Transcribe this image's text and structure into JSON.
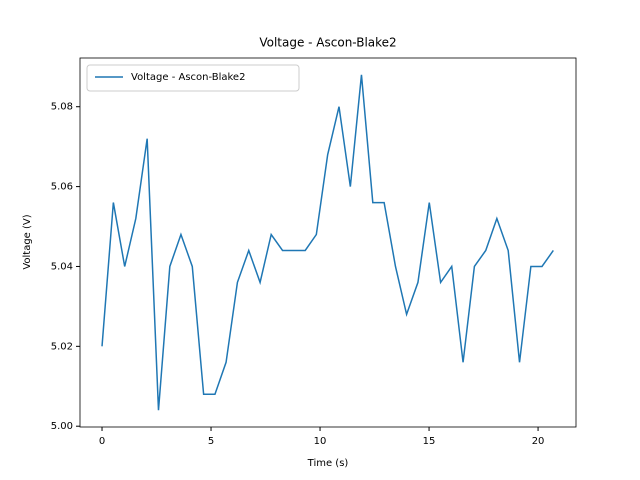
{
  "chart_data": {
    "type": "line",
    "title": "Voltage - Ascon-Blake2",
    "xlabel": "Time (s)",
    "ylabel": "Voltage (V)",
    "x": [
      0,
      0.52,
      1.04,
      1.55,
      2.07,
      2.59,
      3.11,
      3.62,
      4.14,
      4.66,
      5.18,
      5.69,
      6.21,
      6.73,
      7.25,
      7.76,
      8.28,
      8.8,
      9.32,
      9.83,
      10.35,
      10.87,
      11.39,
      11.9,
      12.42,
      12.94,
      13.46,
      13.97,
      14.49,
      15.01,
      15.53,
      16.04,
      16.56,
      17.08,
      17.6,
      18.11,
      18.63,
      19.15,
      19.67,
      20.18,
      20.7
    ],
    "series": [
      {
        "name": "Voltage - Ascon-Blake2",
        "color": "#1f77b4",
        "values": [
          5.02,
          5.056,
          5.04,
          5.052,
          5.072,
          5.004,
          5.04,
          5.048,
          5.04,
          5.008,
          5.008,
          5.016,
          5.036,
          5.044,
          5.036,
          5.048,
          5.044,
          5.044,
          5.044,
          5.048,
          5.068,
          5.08,
          5.06,
          5.088,
          5.056,
          5.056,
          5.04,
          5.028,
          5.036,
          5.056,
          5.036,
          5.04,
          5.016,
          5.04,
          5.044,
          5.052,
          5.044,
          5.016,
          5.04,
          5.04,
          5.044
        ]
      }
    ],
    "xlim": [
      -1.01,
      21.74
    ],
    "xticks": [
      0,
      5,
      10,
      15,
      20
    ],
    "ylim": [
      4.9998,
      5.0922
    ],
    "yticks": [
      {
        "value": 5,
        "label": "5.00"
      },
      5.02,
      5.04,
      5.06,
      5.08
    ],
    "legend": "upper left"
  }
}
